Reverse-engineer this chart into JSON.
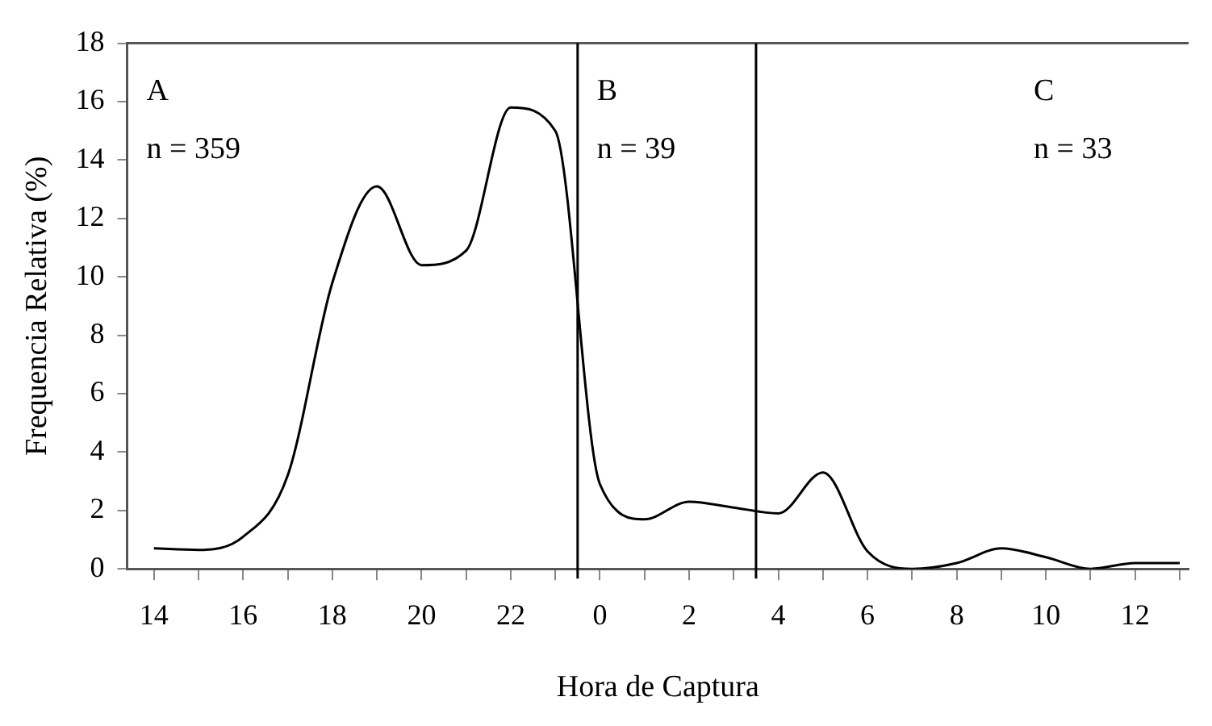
{
  "chart_data": {
    "type": "line",
    "xlabel": "Hora de Captura",
    "ylabel": "Frequencia Relativa (%)",
    "x": [
      "--01-01T14:00",
      "--01-01T15:00",
      "--01-01T16:00",
      "--01-01T17:00",
      "--01-01T18:00",
      "--01-01T19:00",
      "--01-01T20:00",
      "--01-01T21:00",
      "--01-01T22:00",
      "--01-01T23:00",
      "--01-02T00:00",
      "--01-02T01:00",
      "--01-02T02:00",
      "--01-02T03:00",
      "--01-02T04:00",
      "--01-02T05:00",
      "--01-02T06:00",
      "--01-02T07:00",
      "--01-02T08:00",
      "--01-02T09:00",
      "--01-02T10:00",
      "--01-02T11:00",
      "--01-02T12:00",
      "--01-02T13:00"
    ],
    "series": [
      {
        "color": "#000000",
        "values": [
          0.7,
          0.65,
          1.1,
          3.2,
          9.8,
          13.1,
          10.4,
          10.9,
          15.8,
          15.0,
          2.9,
          1.7,
          2.3,
          2.1,
          1.9,
          3.3,
          0.6,
          0,
          0.2,
          0.7,
          0.4,
          0,
          0.2,
          0.2
        ]
      }
    ],
    "xlim": [
      "--01-01T13:24",
      "--01-02T13:12"
    ],
    "xticks": [
      {
        "value": "--01-01T14:00",
        "label": "14"
      },
      {
        "value": "--01-01T15:00",
        "label": null
      },
      {
        "value": "--01-01T16:00",
        "label": "16"
      },
      {
        "value": "--01-01T17:00",
        "label": null
      },
      {
        "value": "--01-01T18:00",
        "label": "18"
      },
      {
        "value": "--01-01T19:00",
        "label": null
      },
      {
        "value": "--01-01T20:00",
        "label": "20"
      },
      {
        "value": "--01-01T21:00",
        "label": null
      },
      {
        "value": "--01-01T22:00",
        "label": "22"
      },
      {
        "value": "--01-01T23:00",
        "label": null
      },
      {
        "value": "--01-02T00:00",
        "label": "0"
      },
      {
        "value": "--01-02T01:00",
        "label": null
      },
      {
        "value": "--01-02T02:00",
        "label": "2"
      },
      {
        "value": "--01-02T03:00",
        "label": null
      },
      {
        "value": "--01-02T04:00",
        "label": "4"
      },
      {
        "value": "--01-02T05:00",
        "label": null
      },
      {
        "value": "--01-02T06:00",
        "label": "6"
      },
      {
        "value": "--01-02T07:00",
        "label": null
      },
      {
        "value": "--01-02T08:00",
        "label": "8"
      },
      {
        "value": "--01-02T09:00",
        "label": null
      },
      {
        "value": "--01-02T10:00",
        "label": "10"
      },
      {
        "value": "--01-02T11:00",
        "label": null
      },
      {
        "value": "--01-02T12:00",
        "label": "12"
      },
      {
        "value": "--01-02T13:00",
        "label": null
      }
    ],
    "ylim": [
      0,
      18
    ],
    "yticks": [
      0,
      2,
      4,
      6,
      8,
      10,
      12,
      14,
      16,
      18
    ],
    "ref_lines": [
      {
        "axis": "x",
        "value": "--01-01T23:30",
        "color": "#000000"
      },
      {
        "axis": "x",
        "value": "--01-02T03:30",
        "color": "#000000"
      }
    ],
    "annotations": [
      "A",
      "n = 359",
      "B",
      "n = 39",
      "C",
      "n = 33"
    ],
    "grid": false,
    "legend": false,
    "marker": "none",
    "line_style": "solid"
  }
}
